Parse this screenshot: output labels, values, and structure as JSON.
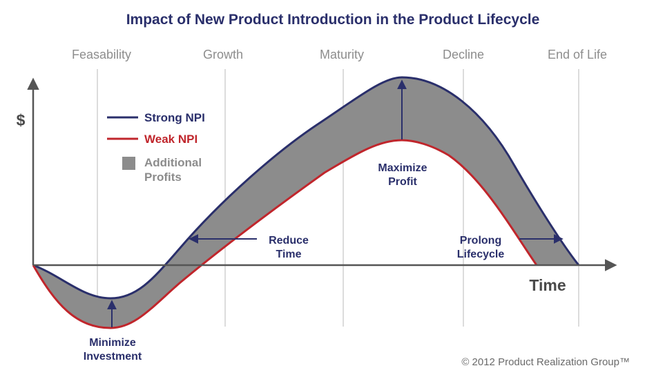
{
  "title": "Impact of New Product Introduction in the Product Lifecycle",
  "phases": [
    "Feasability",
    "Growth",
    "Maturity",
    "Decline",
    "End of Life"
  ],
  "axes": {
    "y_label": "$",
    "x_label": "Time"
  },
  "legend": {
    "strong": "Strong NPI",
    "weak": "Weak NPI",
    "area_line1": "Additional",
    "area_line2": "Profits"
  },
  "annotations": {
    "minimize_1": "Minimize",
    "minimize_2": "Investment",
    "reduce_1": "Reduce",
    "reduce_2": "Time",
    "maximize_1": "Maximize",
    "maximize_2": "Profit",
    "prolong_1": "Prolong",
    "prolong_2": "Lifecycle"
  },
  "copyright": "© 2012 Product Realization Group™",
  "colors": {
    "strong": "#2a2f6b",
    "weak": "#c0262c",
    "area": "#8c8c8c",
    "title": "#2a2f6b",
    "phase": "#8d8d8d",
    "axis": "#555555"
  }
}
